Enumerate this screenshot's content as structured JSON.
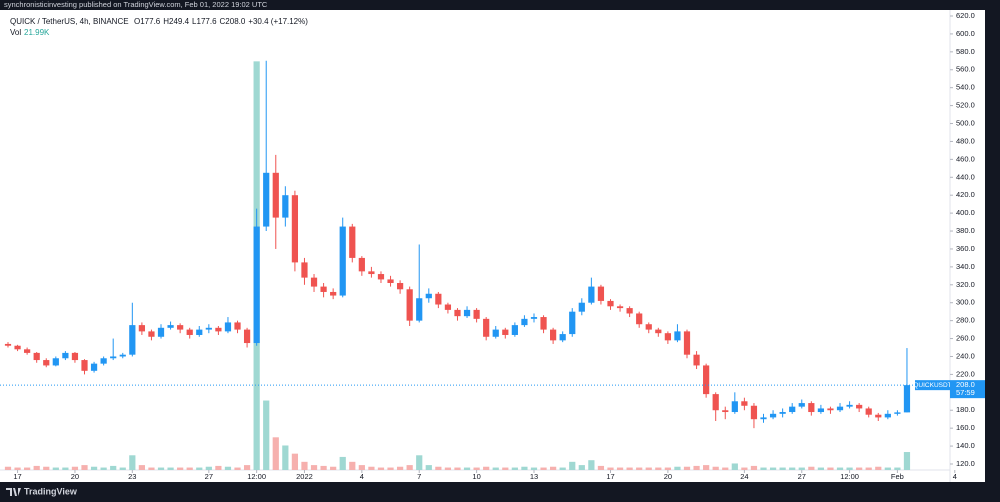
{
  "header": "synchronisticinvesting published on TradingView.com, Feb 01, 2022 19:02 UTC",
  "footer": "TradingView",
  "chart_data": {
    "type": "candlestick",
    "symbol": "QUICK / TetherUS, 4h, BINANCE",
    "ohlc_text": [
      "O177.6",
      "H249.4",
      "L177.6",
      "C208.0",
      "+30.4 (+17.12%)"
    ],
    "volume_title": "Vol",
    "volume_value_label": "21.99K",
    "up_color": "#2196f3",
    "down_color": "#ef5350",
    "volume_up_color": "#9fd8d2",
    "volume_down_color": "#f6b0ae",
    "candles": [
      [
        254,
        256,
        250,
        252
      ],
      [
        252,
        253,
        246,
        248
      ],
      [
        248,
        250,
        242,
        244
      ],
      [
        244,
        245,
        233,
        236
      ],
      [
        236,
        238,
        228,
        230
      ],
      [
        230,
        240,
        229,
        238
      ],
      [
        238,
        246,
        236,
        244
      ],
      [
        244,
        245,
        233,
        236
      ],
      [
        236,
        237,
        220,
        224
      ],
      [
        224,
        234,
        222,
        232
      ],
      [
        232,
        240,
        230,
        238
      ],
      [
        238,
        260,
        236,
        240
      ],
      [
        240,
        244,
        238,
        242
      ],
      [
        242,
        300,
        240,
        275
      ],
      [
        275,
        278,
        264,
        268
      ],
      [
        268,
        270,
        258,
        262
      ],
      [
        262,
        276,
        260,
        272
      ],
      [
        272,
        279,
        270,
        275
      ],
      [
        275,
        277,
        266,
        270
      ],
      [
        270,
        272,
        260,
        264
      ],
      [
        264,
        274,
        262,
        270
      ],
      [
        270,
        276,
        266,
        272
      ],
      [
        272,
        274,
        264,
        268
      ],
      [
        268,
        284,
        266,
        278
      ],
      [
        278,
        280,
        266,
        270
      ],
      [
        270,
        272,
        250,
        255
      ],
      [
        255,
        405,
        252,
        385
      ],
      [
        385,
        570,
        380,
        445
      ],
      [
        445,
        465,
        360,
        395
      ],
      [
        395,
        430,
        385,
        420
      ],
      [
        420,
        425,
        335,
        345
      ],
      [
        345,
        350,
        320,
        328
      ],
      [
        328,
        332,
        312,
        318
      ],
      [
        318,
        322,
        306,
        312
      ],
      [
        312,
        316,
        304,
        308
      ],
      [
        308,
        395,
        306,
        385
      ],
      [
        385,
        388,
        345,
        350
      ],
      [
        350,
        352,
        330,
        335
      ],
      [
        335,
        340,
        328,
        332
      ],
      [
        332,
        335,
        322,
        326
      ],
      [
        326,
        330,
        318,
        322
      ],
      [
        322,
        325,
        310,
        315
      ],
      [
        315,
        318,
        274,
        280
      ],
      [
        280,
        365,
        278,
        305
      ],
      [
        305,
        316,
        300,
        310
      ],
      [
        310,
        312,
        294,
        298
      ],
      [
        298,
        300,
        288,
        292
      ],
      [
        292,
        294,
        280,
        285
      ],
      [
        285,
        296,
        283,
        292
      ],
      [
        292,
        294,
        278,
        282
      ],
      [
        282,
        284,
        258,
        262
      ],
      [
        262,
        274,
        260,
        270
      ],
      [
        270,
        272,
        260,
        264
      ],
      [
        264,
        278,
        262,
        275
      ],
      [
        275,
        286,
        273,
        282
      ],
      [
        282,
        288,
        278,
        284
      ],
      [
        284,
        286,
        266,
        270
      ],
      [
        270,
        272,
        254,
        258
      ],
      [
        258,
        268,
        256,
        265
      ],
      [
        265,
        294,
        262,
        290
      ],
      [
        290,
        305,
        286,
        300
      ],
      [
        300,
        328,
        298,
        318
      ],
      [
        318,
        320,
        298,
        302
      ],
      [
        302,
        304,
        292,
        296
      ],
      [
        296,
        298,
        290,
        294
      ],
      [
        294,
        296,
        284,
        288
      ],
      [
        288,
        290,
        272,
        276
      ],
      [
        276,
        278,
        266,
        270
      ],
      [
        270,
        272,
        262,
        266
      ],
      [
        266,
        268,
        254,
        258
      ],
      [
        258,
        276,
        256,
        268
      ],
      [
        268,
        270,
        238,
        242
      ],
      [
        242,
        246,
        226,
        230
      ],
      [
        230,
        232,
        194,
        198
      ],
      [
        198,
        200,
        168,
        180
      ],
      [
        180,
        184,
        170,
        178
      ],
      [
        178,
        200,
        176,
        190
      ],
      [
        190,
        194,
        180,
        185
      ],
      [
        185,
        188,
        160,
        170
      ],
      [
        170,
        176,
        166,
        172
      ],
      [
        172,
        180,
        170,
        176
      ],
      [
        176,
        182,
        172,
        178
      ],
      [
        178,
        188,
        176,
        184
      ],
      [
        184,
        192,
        182,
        188
      ],
      [
        188,
        190,
        174,
        178
      ],
      [
        178,
        186,
        176,
        182
      ],
      [
        182,
        184,
        176,
        180
      ],
      [
        180,
        188,
        178,
        184
      ],
      [
        184,
        190,
        182,
        186
      ],
      [
        186,
        188,
        178,
        182
      ],
      [
        182,
        184,
        172,
        175
      ],
      [
        175,
        177,
        168,
        172
      ],
      [
        172,
        180,
        170,
        176
      ],
      [
        176,
        180,
        174,
        177.6
      ],
      [
        177.6,
        249.4,
        177.6,
        208.0
      ]
    ],
    "volume": [
      4000,
      3000,
      3000,
      5000,
      4000,
      3000,
      3000,
      4000,
      6000,
      4000,
      3000,
      5000,
      3000,
      18000,
      6000,
      3000,
      3000,
      3000,
      3000,
      3000,
      3000,
      4000,
      5000,
      4000,
      3000,
      6000,
      500000,
      85000,
      40000,
      30000,
      20000,
      10000,
      6000,
      5000,
      4000,
      16000,
      10000,
      6000,
      4000,
      3000,
      3000,
      4000,
      6000,
      18000,
      6000,
      4000,
      3000,
      3000,
      3000,
      3000,
      4000,
      3000,
      3000,
      3000,
      4000,
      3000,
      3000,
      4000,
      3000,
      10000,
      6000,
      12000,
      5000,
      3000,
      3000,
      3000,
      3000,
      3000,
      3000,
      3000,
      4000,
      4000,
      5000,
      6000,
      4000,
      3000,
      8000,
      3000,
      5000,
      3000,
      3000,
      3000,
      3000,
      3000,
      4000,
      3000,
      3000,
      3000,
      3000,
      3000,
      3000,
      4000,
      3000,
      3000,
      21990
    ],
    "volume_lim": [
      0,
      520000
    ],
    "xlim": [
      0,
      98.5
    ],
    "xticks": [
      {
        "value": 1,
        "label": "17"
      },
      {
        "value": 7,
        "label": "20"
      },
      {
        "value": 13,
        "label": "23"
      },
      {
        "value": 21,
        "label": "27"
      },
      {
        "value": 26,
        "label": "12:00"
      },
      {
        "value": 31,
        "label": "2022"
      },
      {
        "value": 37,
        "label": "4"
      },
      {
        "value": 43,
        "label": "7"
      },
      {
        "value": 49,
        "label": "10"
      },
      {
        "value": 55,
        "label": "13"
      },
      {
        "value": 63,
        "label": "17"
      },
      {
        "value": 69,
        "label": "20"
      },
      {
        "value": 77,
        "label": "24"
      },
      {
        "value": 83,
        "label": "27"
      },
      {
        "value": 88,
        "label": "12:00"
      },
      {
        "value": 93,
        "label": "Feb"
      },
      {
        "value": 99,
        "label": "4"
      }
    ],
    "ylim": [
      113.3,
      626.7
    ],
    "yticks": [
      {
        "value": 120,
        "label": "120.0"
      },
      {
        "value": 140,
        "label": "140.0"
      },
      {
        "value": 160,
        "label": "160.0"
      },
      {
        "value": 180,
        "label": "180.0"
      },
      {
        "value": 200,
        "label": "200.0"
      },
      {
        "value": 220,
        "label": "220.0"
      },
      {
        "value": 240,
        "label": "240.0"
      },
      {
        "value": 260,
        "label": "260.0"
      },
      {
        "value": 280,
        "label": "280.0"
      },
      {
        "value": 300,
        "label": "300.0"
      },
      {
        "value": 320,
        "label": "320.0"
      },
      {
        "value": 340,
        "label": "340.0"
      },
      {
        "value": 360,
        "label": "360.0"
      },
      {
        "value": 380,
        "label": "380.0"
      },
      {
        "value": 400,
        "label": "400.0"
      },
      {
        "value": 420,
        "label": "420.0"
      },
      {
        "value": 440,
        "label": "440.0"
      },
      {
        "value": 460,
        "label": "460.0"
      },
      {
        "value": 480,
        "label": "480.0"
      },
      {
        "value": 500,
        "label": "500.0"
      },
      {
        "value": 520,
        "label": "520.0"
      },
      {
        "value": 540,
        "label": "540.0"
      },
      {
        "value": 560,
        "label": "560.0"
      },
      {
        "value": 580,
        "label": "580.0"
      },
      {
        "value": 600,
        "label": "600.0"
      },
      {
        "value": 620,
        "label": "620.0"
      }
    ],
    "grid": false,
    "price_line": {
      "value": 208.0,
      "label": "208.0",
      "symbol": "QUICKUSDT",
      "countdown": "57:59",
      "color": "#2196f3"
    }
  }
}
